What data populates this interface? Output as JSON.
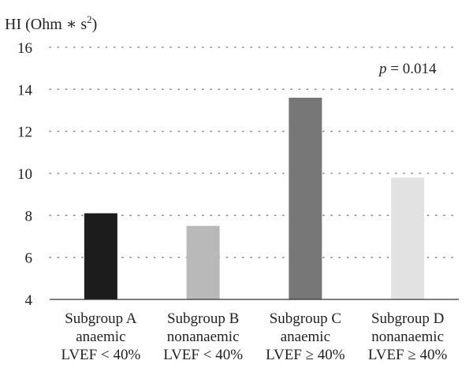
{
  "chart_data": {
    "type": "bar",
    "ylabel": "HI (Ohm ∗ s",
    "ylabel_superscript": "2",
    "ylabel_suffix": ")",
    "ylim": [
      4,
      16
    ],
    "yticks": [
      4,
      6,
      8,
      10,
      12,
      14,
      16
    ],
    "grid": "horizontal dotted",
    "annotation": {
      "italic": "p",
      "text": " = 0.014"
    },
    "categories": [
      [
        "Subgroup A",
        "anaemic",
        "LVEF < 40%"
      ],
      [
        "Subgroup B",
        "nonanaemic",
        "LVEF < 40%"
      ],
      [
        "Subgroup C",
        "anaemic",
        "LVEF ≥ 40%"
      ],
      [
        "Subgroup D",
        "nonanaemic",
        "LVEF ≥ 40%"
      ]
    ],
    "values": [
      8.1,
      7.5,
      13.6,
      9.8
    ],
    "colors": [
      "#1c1c1c",
      "#b9b9b9",
      "#777777",
      "#e2e2e2"
    ]
  }
}
